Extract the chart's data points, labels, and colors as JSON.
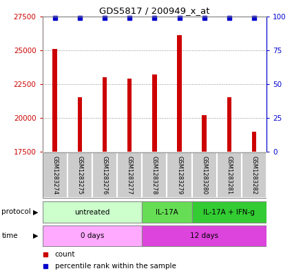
{
  "title": "GDS5817 / 200949_x_at",
  "samples": [
    "GSM1283274",
    "GSM1283275",
    "GSM1283276",
    "GSM1283277",
    "GSM1283278",
    "GSM1283279",
    "GSM1283280",
    "GSM1283281",
    "GSM1283282"
  ],
  "counts": [
    25100,
    21500,
    23000,
    22900,
    23200,
    26100,
    20200,
    21500,
    19000
  ],
  "percentiles": [
    99,
    99,
    99,
    99,
    99,
    99,
    99,
    99,
    99
  ],
  "ylim_left": [
    17500,
    27500
  ],
  "ylim_right": [
    0,
    100
  ],
  "yticks_left": [
    17500,
    20000,
    22500,
    25000,
    27500
  ],
  "yticks_right": [
    0,
    25,
    50,
    75,
    100
  ],
  "bar_color": "#cc0000",
  "dot_color": "#0000cc",
  "bar_bottom": 17500,
  "grid_color": "#888888",
  "sample_box_color": "#cccccc",
  "left_axis_color": "#cc0000",
  "right_axis_color": "#0000cc",
  "proto_groups": [
    {
      "label": "untreated",
      "xstart": -0.5,
      "xend": 3.5,
      "color": "#ccffcc"
    },
    {
      "label": "IL-17A",
      "xstart": 3.5,
      "xend": 5.5,
      "color": "#66dd55"
    },
    {
      "label": "IL-17A + IFN-g",
      "xstart": 5.5,
      "xend": 8.5,
      "color": "#33cc33"
    }
  ],
  "time_groups": [
    {
      "label": "0 days",
      "xstart": -0.5,
      "xend": 3.5,
      "color": "#ffaaff"
    },
    {
      "label": "12 days",
      "xstart": 3.5,
      "xend": 8.5,
      "color": "#dd44dd"
    }
  ]
}
